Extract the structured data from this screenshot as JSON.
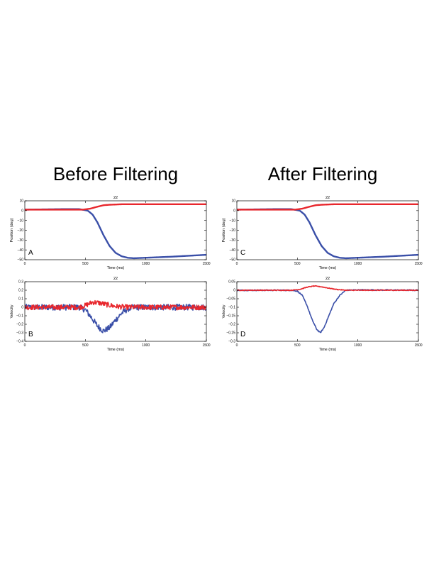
{
  "headings": {
    "left": "Before Filtering",
    "right": "After Filtering"
  },
  "colors": {
    "series_horizontal": "#3a4fa8",
    "series_vertical": "#e8272d",
    "axis": "#000000"
  },
  "chart_data": [
    {
      "id": "panel-A",
      "type": "line",
      "panel_label": "A",
      "title": "22",
      "xlabel": "Time (ms)",
      "ylabel": "Position (deg)",
      "xlim": [
        0,
        1500
      ],
      "ylim": [
        -50,
        10
      ],
      "xticks": [
        0,
        500,
        1000,
        1500
      ],
      "yticks": [
        10,
        0,
        -10,
        -20,
        -30,
        -40,
        -50
      ],
      "ytick_labels": [
        "10",
        "0",
        "−10",
        "−20",
        "−30",
        "−40",
        "−50"
      ],
      "grid": false,
      "series": [
        {
          "color": "#3a4fa8",
          "x": [
            0,
            300,
            450,
            520,
            560,
            600,
            650,
            700,
            750,
            800,
            850,
            900,
            1000,
            1200,
            1500
          ],
          "y": [
            1,
            1.5,
            1.5,
            0,
            -4,
            -12,
            -25,
            -36,
            -43,
            -46.5,
            -48,
            -48.5,
            -48,
            -47,
            -45
          ]
        },
        {
          "color": "#e8272d",
          "x": [
            0,
            300,
            480,
            540,
            600,
            650,
            700,
            800,
            1000,
            1500
          ],
          "y": [
            1,
            1,
            1,
            2,
            4,
            5.5,
            6,
            6.5,
            6.5,
            6.5
          ]
        }
      ]
    },
    {
      "id": "panel-B",
      "type": "line",
      "panel_label": "B",
      "title": "22",
      "xlabel": "Time (ms)",
      "ylabel": "Velocity",
      "xlim": [
        0,
        1500
      ],
      "ylim": [
        -0.4,
        0.3
      ],
      "xticks": [
        0,
        500,
        1000,
        1500
      ],
      "yticks": [
        0.3,
        0.2,
        0.1,
        0,
        -0.1,
        -0.2,
        -0.3,
        -0.4
      ],
      "ytick_labels": [
        "0.3",
        "0.2",
        "0.1",
        "0",
        "−0.1",
        "−0.2",
        "−0.3",
        "−0.4"
      ],
      "grid": false,
      "series": [
        {
          "color": "#3a4fa8",
          "noise": 0.035,
          "x": [
            0,
            450,
            500,
            550,
            600,
            650,
            700,
            750,
            800,
            850,
            900,
            1000,
            1500
          ],
          "y": [
            0,
            0,
            -0.03,
            -0.12,
            -0.22,
            -0.28,
            -0.24,
            -0.15,
            -0.07,
            -0.02,
            0,
            0,
            0
          ]
        },
        {
          "color": "#e8272d",
          "noise": 0.03,
          "x": [
            0,
            450,
            500,
            560,
            620,
            680,
            750,
            850,
            1000,
            1500
          ],
          "y": [
            0,
            0,
            0.02,
            0.06,
            0.05,
            0.03,
            0.01,
            0,
            0,
            0
          ]
        }
      ]
    },
    {
      "id": "panel-C",
      "type": "line",
      "panel_label": "C",
      "title": "22",
      "xlabel": "Time (ms)",
      "ylabel": "Position (deg)",
      "xlim": [
        0,
        1500
      ],
      "ylim": [
        -50,
        10
      ],
      "xticks": [
        0,
        500,
        1000,
        1500
      ],
      "yticks": [
        10,
        0,
        -10,
        -20,
        -30,
        -40,
        -50
      ],
      "ytick_labels": [
        "10",
        "0",
        "−10",
        "−20",
        "−30",
        "−40",
        "−50"
      ],
      "grid": false,
      "series": [
        {
          "color": "#3a4fa8",
          "x": [
            0,
            300,
            450,
            520,
            560,
            600,
            650,
            700,
            750,
            800,
            850,
            900,
            1000,
            1200,
            1500
          ],
          "y": [
            1,
            1.5,
            1.5,
            0,
            -4,
            -12,
            -25,
            -36,
            -43,
            -46.5,
            -48,
            -48.5,
            -48,
            -47,
            -45
          ]
        },
        {
          "color": "#e8272d",
          "x": [
            0,
            300,
            480,
            540,
            600,
            650,
            700,
            800,
            1000,
            1500
          ],
          "y": [
            1,
            1,
            1,
            2,
            4,
            5.5,
            6,
            6.5,
            6.5,
            6.5
          ]
        }
      ]
    },
    {
      "id": "panel-D",
      "type": "line",
      "panel_label": "D",
      "title": "22",
      "xlabel": "Time (ms)",
      "ylabel": "Velocity",
      "xlim": [
        0,
        1500
      ],
      "ylim": [
        -0.3,
        0.05
      ],
      "xticks": [
        0,
        500,
        1000,
        1500
      ],
      "yticks": [
        0.05,
        0,
        -0.05,
        -0.1,
        -0.15,
        -0.2,
        -0.25,
        -0.3
      ],
      "ytick_labels": [
        "0.05",
        "0",
        "−0.05",
        "−0.1",
        "−0.15",
        "−0.2",
        "−0.25",
        "−0.3"
      ],
      "grid": false,
      "series": [
        {
          "color": "#3a4fa8",
          "noise": 0.003,
          "x": [
            0,
            450,
            500,
            540,
            580,
            620,
            660,
            690,
            720,
            760,
            800,
            850,
            900,
            1000,
            1500
          ],
          "y": [
            0,
            0,
            -0.005,
            -0.03,
            -0.09,
            -0.17,
            -0.23,
            -0.25,
            -0.22,
            -0.15,
            -0.08,
            -0.03,
            0,
            0.002,
            0
          ]
        },
        {
          "color": "#e8272d",
          "noise": 0.002,
          "x": [
            0,
            450,
            520,
            580,
            640,
            700,
            760,
            820,
            900,
            1000,
            1500
          ],
          "y": [
            0,
            0,
            0.005,
            0.018,
            0.025,
            0.02,
            0.012,
            0.005,
            0,
            0,
            0
          ]
        }
      ]
    }
  ]
}
